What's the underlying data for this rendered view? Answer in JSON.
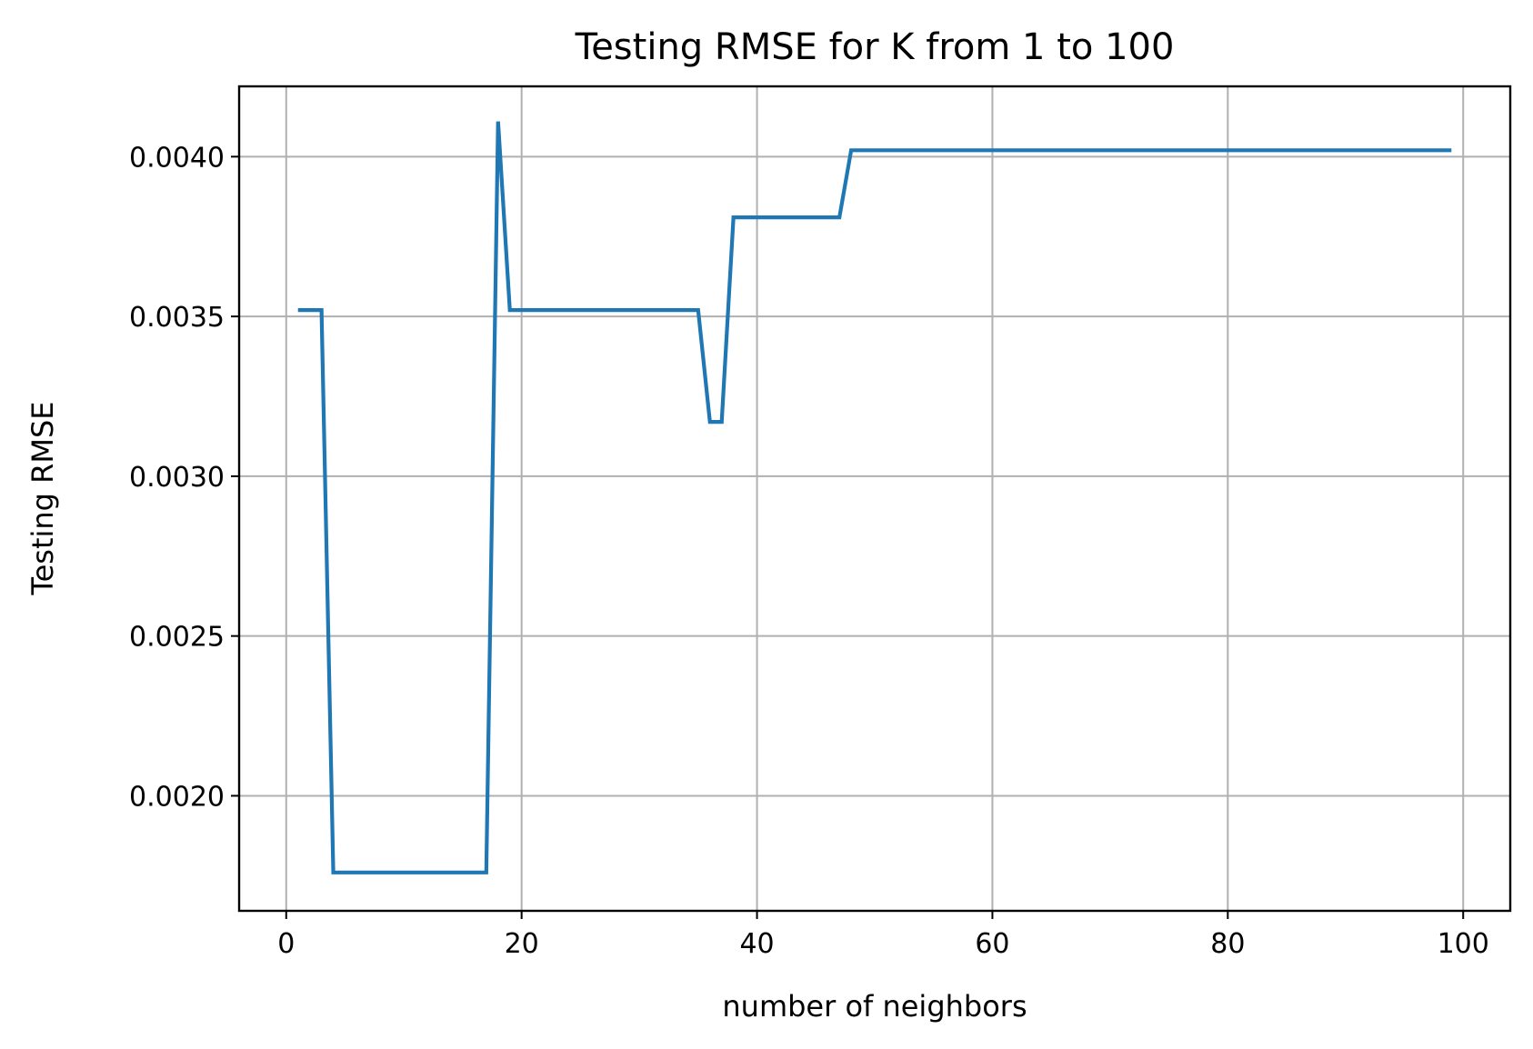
{
  "chart_data": {
    "type": "line",
    "title": "Testing RMSE for K from 1 to 100",
    "xlabel": "number of neighbors",
    "ylabel": "Testing RMSE",
    "xlim": [
      -4,
      104
    ],
    "ylim": [
      0.00164,
      0.00422
    ],
    "xticks": [
      0,
      20,
      40,
      60,
      80,
      100
    ],
    "xtick_labels": [
      "0",
      "20",
      "40",
      "60",
      "80",
      "100"
    ],
    "yticks": [
      0.002,
      0.0025,
      0.003,
      0.0035,
      0.004
    ],
    "ytick_labels": [
      "0.0020",
      "0.0025",
      "0.0030",
      "0.0035",
      "0.0040"
    ],
    "grid": true,
    "color": "#1f77b4",
    "series": [
      {
        "x": [
          1,
          2,
          3,
          4,
          5,
          6,
          7,
          8,
          9,
          10,
          11,
          12,
          13,
          14,
          15,
          16,
          17,
          18,
          19,
          20,
          21,
          22,
          23,
          24,
          25,
          26,
          27,
          28,
          29,
          30,
          31,
          32,
          33,
          34,
          35,
          36,
          37,
          38,
          39,
          40,
          41,
          42,
          43,
          44,
          45,
          46,
          47,
          48,
          49,
          50,
          51,
          52,
          53,
          54,
          55,
          56,
          57,
          58,
          59,
          60,
          61,
          62,
          63,
          64,
          65,
          66,
          67,
          68,
          69,
          70,
          71,
          72,
          73,
          74,
          75,
          76,
          77,
          78,
          79,
          80,
          81,
          82,
          83,
          84,
          85,
          86,
          87,
          88,
          89,
          90,
          91,
          92,
          93,
          94,
          95,
          96,
          97,
          98,
          99
        ],
        "y": [
          0.00352,
          0.00352,
          0.00352,
          0.00176,
          0.00176,
          0.00176,
          0.00176,
          0.00176,
          0.00176,
          0.00176,
          0.00176,
          0.00176,
          0.00176,
          0.00176,
          0.00176,
          0.00176,
          0.00176,
          0.00411,
          0.00352,
          0.00352,
          0.00352,
          0.00352,
          0.00352,
          0.00352,
          0.00352,
          0.00352,
          0.00352,
          0.00352,
          0.00352,
          0.00352,
          0.00352,
          0.00352,
          0.00352,
          0.00352,
          0.00352,
          0.00317,
          0.00317,
          0.00381,
          0.00381,
          0.00381,
          0.00381,
          0.00381,
          0.00381,
          0.00381,
          0.00381,
          0.00381,
          0.00381,
          0.00402,
          0.00402,
          0.00402,
          0.00402,
          0.00402,
          0.00402,
          0.00402,
          0.00402,
          0.00402,
          0.00402,
          0.00402,
          0.00402,
          0.00402,
          0.00402,
          0.00402,
          0.00402,
          0.00402,
          0.00402,
          0.00402,
          0.00402,
          0.00402,
          0.00402,
          0.00402,
          0.00402,
          0.00402,
          0.00402,
          0.00402,
          0.00402,
          0.00402,
          0.00402,
          0.00402,
          0.00402,
          0.00402,
          0.00402,
          0.00402,
          0.00402,
          0.00402,
          0.00402,
          0.00402,
          0.00402,
          0.00402,
          0.00402,
          0.00402,
          0.00402,
          0.00402,
          0.00402,
          0.00402,
          0.00402,
          0.00402,
          0.00402,
          0.00402,
          0.00402
        ]
      }
    ]
  }
}
